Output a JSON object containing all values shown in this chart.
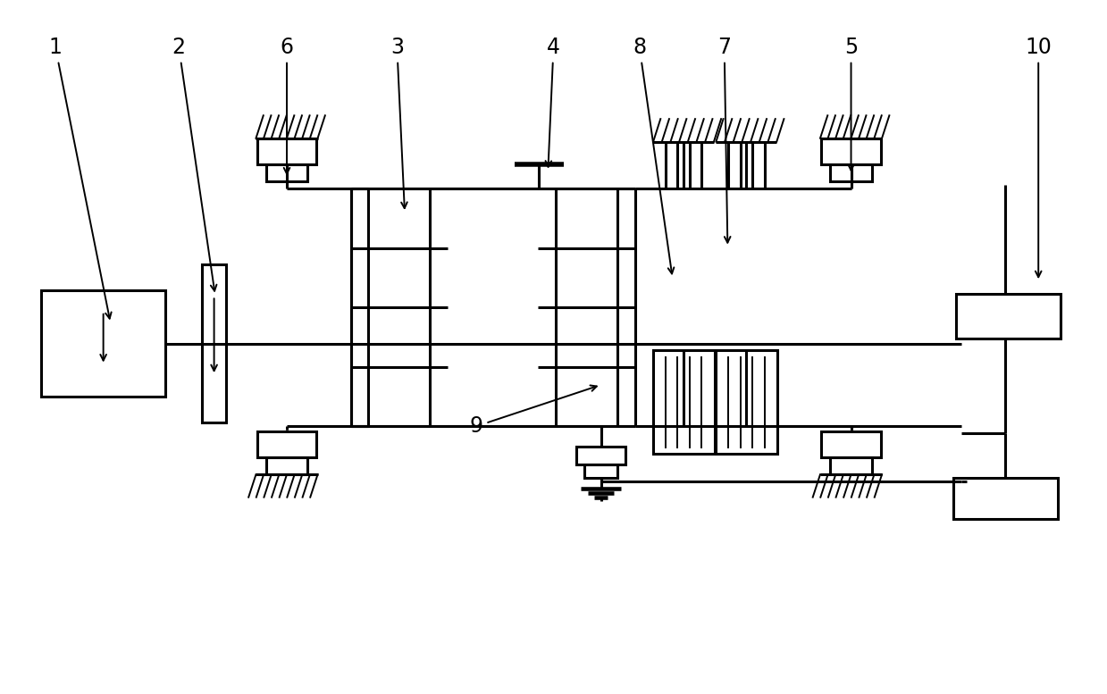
{
  "bg": "#ffffff",
  "lc": "#000000",
  "lw": 2.2,
  "lwt": 1.4,
  "fig_w": 12.39,
  "fig_h": 7.77,
  "label_fs": 17,
  "labels": {
    "1": [
      0.048,
      0.935,
      0.098,
      0.535
    ],
    "2": [
      0.16,
      0.935,
      0.193,
      0.575
    ],
    "3": [
      0.358,
      0.935,
      0.365,
      0.695
    ],
    "4": [
      0.5,
      0.935,
      0.495,
      0.755
    ],
    "5": [
      0.77,
      0.935,
      0.77,
      0.75
    ],
    "6": [
      0.258,
      0.935,
      0.258,
      0.745
    ],
    "7": [
      0.655,
      0.935,
      0.658,
      0.645
    ],
    "8": [
      0.578,
      0.935,
      0.608,
      0.6
    ],
    "9": [
      0.43,
      0.385,
      0.543,
      0.445
    ],
    "10": [
      0.94,
      0.935,
      0.94,
      0.595
    ]
  }
}
